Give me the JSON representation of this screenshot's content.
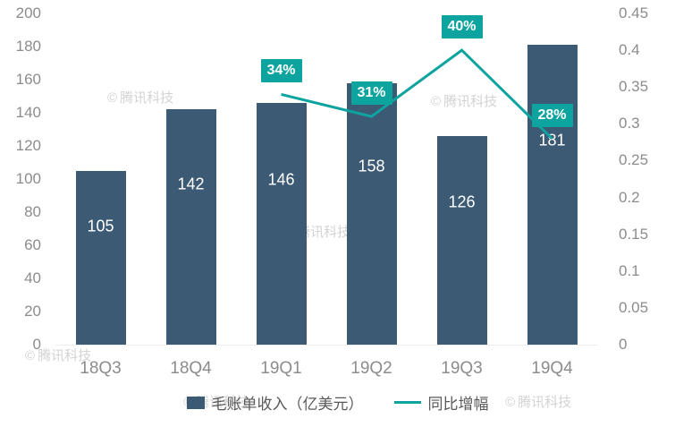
{
  "chart_data": {
    "type": "bar",
    "combo": "bar+line",
    "categories": [
      "18Q3",
      "18Q4",
      "19Q1",
      "19Q2",
      "19Q3",
      "19Q4"
    ],
    "series": [
      {
        "name": "毛账单收入（亿美元）",
        "type": "bar",
        "axis": "left",
        "color": "#3c5a74",
        "values": [
          105,
          142,
          146,
          158,
          126,
          181
        ]
      },
      {
        "name": "同比增幅",
        "type": "line",
        "axis": "right",
        "color": "#0da49f",
        "values": [
          null,
          null,
          0.34,
          0.31,
          0.4,
          0.28
        ],
        "point_labels": [
          "",
          "",
          "34%",
          "31%",
          "40%",
          "28%"
        ]
      }
    ],
    "left_axis": {
      "min": 0,
      "max": 200,
      "step": 20,
      "ticks": [
        "200",
        "180",
        "160",
        "140",
        "120",
        "100",
        "80",
        "60",
        "40",
        "20",
        "0"
      ]
    },
    "right_axis": {
      "min": 0,
      "max": 0.45,
      "step": 0.05,
      "ticks": [
        "0.45",
        "0.4",
        "0.35",
        "0.3",
        "0.25",
        "0.2",
        "0.15",
        "0.1",
        "0.05",
        "0"
      ]
    },
    "legend_position": "bottom",
    "grid": false
  },
  "watermark": {
    "symbol": "©",
    "text": "腾讯科技"
  },
  "ui": {
    "background": "#ffffff",
    "axis_text_color": "#8c8c8c",
    "legend_text_color": "#595959",
    "bar_color": "#3c5a74",
    "line_color": "#0da49f"
  }
}
